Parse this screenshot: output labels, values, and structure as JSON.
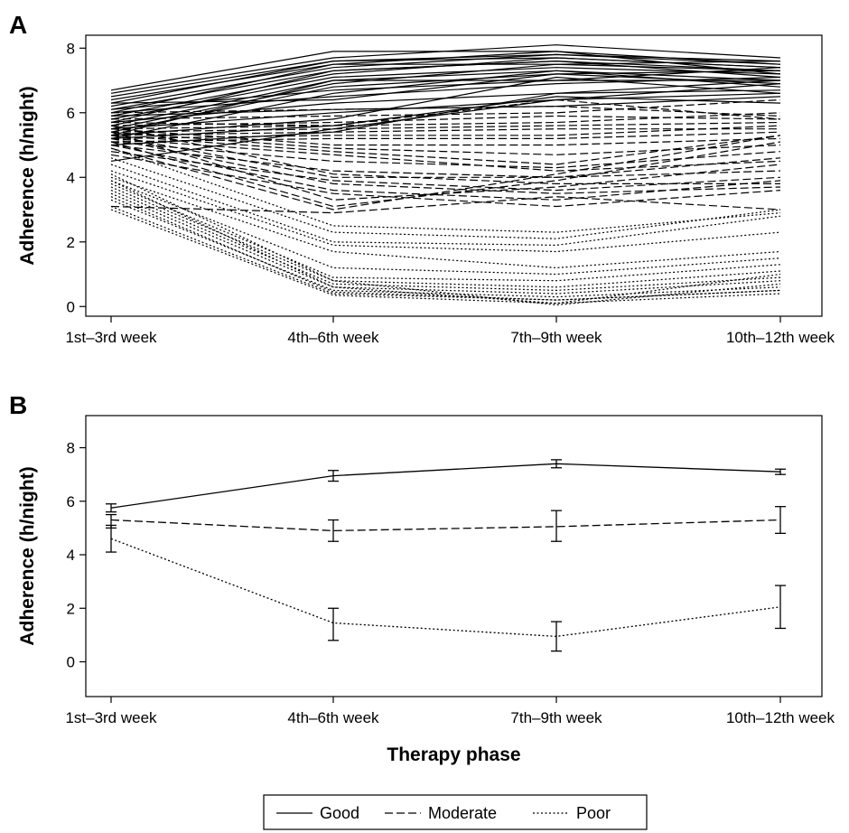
{
  "chart_data": [
    {
      "panel": "A",
      "type": "line",
      "ylabel": "Adherence (h/night)",
      "ylim": [
        -0.3,
        8.4
      ],
      "yticks": [
        0,
        2,
        4,
        6,
        8
      ],
      "categories": [
        "1st–3rd week",
        "4th–6th week",
        "7th–9th week",
        "10th–12th week"
      ],
      "grid": false,
      "groups": [
        {
          "name": "Good",
          "style": "solid",
          "series": [
            [
              6.7,
              7.9,
              7.9,
              7.2
            ],
            [
              6.6,
              7.7,
              8.1,
              7.7
            ],
            [
              6.5,
              7.6,
              7.8,
              7.6
            ],
            [
              6.4,
              7.5,
              7.9,
              7.5
            ],
            [
              6.3,
              7.6,
              7.7,
              7.4
            ],
            [
              6.2,
              7.4,
              7.8,
              7.5
            ],
            [
              6.1,
              7.3,
              7.6,
              7.3
            ],
            [
              6.0,
              7.5,
              7.5,
              7.6
            ],
            [
              5.9,
              7.2,
              7.7,
              7.4
            ],
            [
              5.8,
              7.1,
              7.4,
              7.2
            ],
            [
              5.7,
              7.3,
              7.6,
              7.1
            ],
            [
              5.6,
              7.0,
              7.3,
              7.0
            ],
            [
              5.5,
              6.9,
              7.5,
              7.3
            ],
            [
              5.4,
              6.8,
              7.2,
              6.9
            ],
            [
              5.3,
              7.0,
              7.0,
              7.4
            ],
            [
              5.2,
              6.6,
              7.3,
              6.8
            ],
            [
              6.0,
              6.5,
              6.9,
              7.1
            ],
            [
              5.7,
              6.3,
              6.6,
              6.7
            ],
            [
              5.5,
              6.0,
              6.4,
              6.9
            ],
            [
              5.3,
              5.8,
              7.1,
              6.6
            ],
            [
              5.9,
              6.1,
              6.2,
              6.5
            ],
            [
              5.2,
              5.6,
              6.5,
              6.3
            ],
            [
              5.0,
              5.4,
              6.6,
              7.0
            ],
            [
              4.5,
              5.5,
              6.4,
              6.6
            ],
            [
              6.3,
              6.4,
              7.2,
              7.3
            ],
            [
              6.1,
              6.7,
              7.0,
              7.0
            ]
          ]
        },
        {
          "name": "Moderate",
          "style": "dashed",
          "series": [
            [
              6.0,
              6.1,
              6.2,
              5.9
            ],
            [
              5.8,
              5.9,
              6.0,
              6.4
            ],
            [
              5.6,
              5.7,
              5.9,
              5.8
            ],
            [
              5.5,
              5.6,
              5.7,
              6.0
            ],
            [
              5.4,
              5.5,
              5.6,
              5.7
            ],
            [
              5.3,
              5.4,
              5.5,
              5.5
            ],
            [
              5.2,
              5.3,
              5.3,
              5.6
            ],
            [
              5.1,
              5.2,
              5.2,
              5.4
            ],
            [
              5.5,
              5.0,
              5.0,
              5.2
            ],
            [
              5.4,
              4.9,
              4.7,
              5.0
            ],
            [
              5.3,
              4.8,
              4.4,
              5.3
            ],
            [
              5.2,
              4.7,
              4.2,
              4.5
            ],
            [
              5.1,
              4.5,
              4.3,
              4.8
            ],
            [
              5.0,
              4.2,
              4.0,
              4.2
            ],
            [
              5.3,
              4.0,
              4.0,
              4.6
            ],
            [
              5.6,
              4.1,
              3.8,
              3.8
            ],
            [
              4.8,
              3.9,
              3.6,
              4.0
            ],
            [
              5.2,
              3.8,
              3.5,
              3.7
            ],
            [
              5.0,
              3.6,
              3.3,
              3.9
            ],
            [
              4.7,
              3.5,
              3.1,
              3.6
            ],
            [
              5.4,
              3.3,
              3.7,
              4.4
            ],
            [
              5.1,
              3.1,
              3.9,
              5.1
            ],
            [
              4.9,
              3.0,
              4.1,
              5.3
            ],
            [
              3.1,
              2.9,
              3.4,
              3.0
            ],
            [
              5.7,
              5.6,
              6.4,
              5.8
            ]
          ]
        },
        {
          "name": "Poor",
          "style": "dotted",
          "series": [
            [
              4.9,
              2.5,
              2.3,
              2.9
            ],
            [
              4.6,
              2.3,
              2.1,
              3.0
            ],
            [
              4.4,
              2.0,
              1.9,
              2.8
            ],
            [
              4.2,
              1.9,
              1.7,
              2.3
            ],
            [
              4.0,
              1.7,
              1.2,
              1.7
            ],
            [
              3.9,
              1.2,
              1.0,
              1.5
            ],
            [
              3.8,
              0.9,
              0.8,
              1.3
            ],
            [
              3.7,
              0.8,
              0.6,
              1.1
            ],
            [
              3.6,
              0.7,
              0.5,
              0.9
            ],
            [
              3.5,
              0.6,
              0.4,
              0.8
            ],
            [
              3.3,
              0.5,
              0.3,
              0.6
            ],
            [
              3.1,
              0.4,
              0.2,
              0.5
            ],
            [
              3.0,
              0.35,
              0.1,
              0.4
            ],
            [
              4.1,
              0.8,
              0.05,
              0.7
            ],
            [
              3.9,
              0.6,
              0.1,
              1.0
            ],
            [
              3.4,
              0.45,
              0.2,
              0.5
            ]
          ]
        }
      ]
    },
    {
      "panel": "B",
      "type": "line",
      "ylabel": "Adherence (h/night)",
      "xlabel": "Therapy phase",
      "ylim": [
        -1.3,
        9.2
      ],
      "yticks": [
        0,
        2,
        4,
        6,
        8
      ],
      "categories": [
        "1st–3rd week",
        "4th–6th week",
        "7th–9th week",
        "10th–12th week"
      ],
      "grid": false,
      "series": [
        {
          "name": "Good",
          "style": "solid",
          "values": [
            5.75,
            6.95,
            7.4,
            7.1
          ],
          "err_low": [
            5.6,
            6.75,
            7.25,
            7.0
          ],
          "err_high": [
            5.9,
            7.15,
            7.55,
            7.2
          ]
        },
        {
          "name": "Moderate",
          "style": "dashed",
          "values": [
            5.3,
            4.9,
            5.05,
            5.3
          ],
          "err_low": [
            5.0,
            4.5,
            4.5,
            4.8
          ],
          "err_high": [
            5.5,
            5.3,
            5.65,
            5.8
          ]
        },
        {
          "name": "Poor",
          "style": "dotted",
          "values": [
            4.6,
            1.45,
            0.95,
            2.05
          ],
          "err_low": [
            4.1,
            0.8,
            0.4,
            1.25
          ],
          "err_high": [
            5.1,
            2.0,
            1.5,
            2.85
          ]
        }
      ]
    }
  ],
  "legend": {
    "position": "bottom-center",
    "items": [
      {
        "label": "Good",
        "style": "solid"
      },
      {
        "label": "Moderate",
        "style": "dashed"
      },
      {
        "label": "Poor",
        "style": "dotted"
      }
    ]
  },
  "panel_letters": [
    "A",
    "B"
  ]
}
